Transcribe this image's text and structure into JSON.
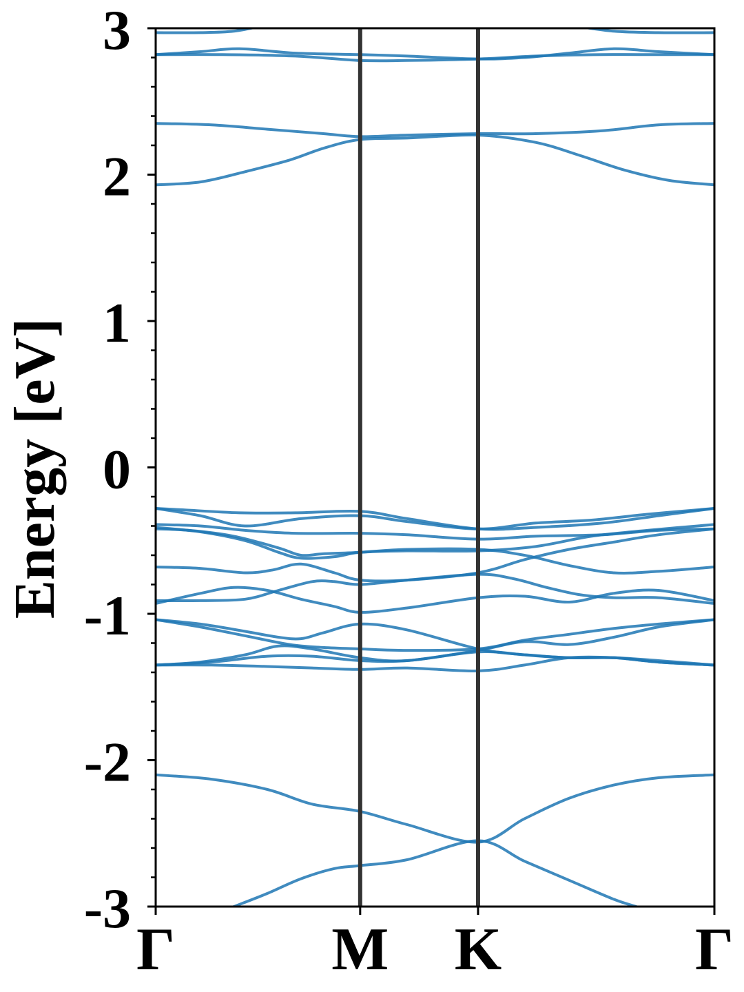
{
  "chart_data": {
    "type": "line",
    "title": "",
    "xlabel": "",
    "ylabel": "Energy [eV]",
    "ylim": [
      -3,
      3
    ],
    "xlim": [
      0,
      1
    ],
    "y_ticks": [
      {
        "value": -3,
        "label": "-3"
      },
      {
        "value": -2,
        "label": "-2"
      },
      {
        "value": -1,
        "label": "-1"
      },
      {
        "value": 0,
        "label": "0"
      },
      {
        "value": 1,
        "label": "1"
      },
      {
        "value": 2,
        "label": "2"
      },
      {
        "value": 3,
        "label": "3"
      }
    ],
    "y_minor_step": 0.2,
    "k_points": [
      {
        "label": "Γ",
        "x": 0.0
      },
      {
        "label": "M",
        "x": 0.366
      },
      {
        "label": "K",
        "x": 0.577
      },
      {
        "label": "Γ",
        "x": 1.0
      }
    ],
    "grid": false,
    "legend": "none",
    "colors": {
      "band": "#1f77b4",
      "kline": "#333333",
      "axis": "#000000"
    },
    "series": [
      {
        "x": [
          0.0,
          0.08,
          0.14,
          0.2,
          0.28,
          0.366,
          0.45,
          0.577,
          0.66,
          0.74,
          0.82,
          0.9,
          1.0
        ],
        "values": [
          2.97,
          2.97,
          2.98,
          3.02,
          3.05,
          3.06,
          3.06,
          3.06,
          3.05,
          3.02,
          2.98,
          2.97,
          2.97
        ]
      },
      {
        "x": [
          0.0,
          0.08,
          0.15,
          0.25,
          0.366,
          0.45,
          0.577,
          0.66,
          0.74,
          0.82,
          0.9,
          1.0
        ],
        "values": [
          2.82,
          2.84,
          2.86,
          2.83,
          2.82,
          2.81,
          2.79,
          2.8,
          2.83,
          2.86,
          2.84,
          2.82
        ]
      },
      {
        "x": [
          0.0,
          0.12,
          0.25,
          0.366,
          0.45,
          0.577,
          0.68,
          0.8,
          0.9,
          1.0
        ],
        "values": [
          2.82,
          2.82,
          2.81,
          2.78,
          2.78,
          2.79,
          2.81,
          2.82,
          2.82,
          2.82
        ]
      },
      {
        "x": [
          0.0,
          0.1,
          0.2,
          0.3,
          0.366,
          0.45,
          0.577,
          0.68,
          0.8,
          0.9,
          1.0
        ],
        "values": [
          2.35,
          2.34,
          2.31,
          2.28,
          2.26,
          2.27,
          2.28,
          2.28,
          2.3,
          2.34,
          2.35
        ]
      },
      {
        "x": [
          0.0,
          0.08,
          0.16,
          0.24,
          0.3,
          0.366,
          0.45,
          0.577,
          0.68,
          0.76,
          0.84,
          0.92,
          1.0
        ],
        "values": [
          1.93,
          1.95,
          2.02,
          2.1,
          2.18,
          2.24,
          2.25,
          2.27,
          2.22,
          2.13,
          2.03,
          1.96,
          1.93
        ]
      },
      {
        "x": [
          0.0,
          0.05,
          0.15,
          0.25,
          0.366,
          0.45,
          0.577,
          0.68,
          0.8,
          0.9,
          1.0
        ],
        "values": [
          -0.28,
          -0.29,
          -0.31,
          -0.31,
          -0.3,
          -0.35,
          -0.42,
          -0.41,
          -0.38,
          -0.33,
          -0.28
        ]
      },
      {
        "x": [
          0.0,
          0.08,
          0.16,
          0.26,
          0.366,
          0.45,
          0.577,
          0.68,
          0.78,
          0.88,
          1.0
        ],
        "values": [
          -0.28,
          -0.33,
          -0.4,
          -0.35,
          -0.33,
          -0.37,
          -0.42,
          -0.38,
          -0.36,
          -0.32,
          -0.28
        ]
      },
      {
        "x": [
          0.0,
          0.08,
          0.16,
          0.25,
          0.366,
          0.45,
          0.577,
          0.68,
          0.8,
          0.9,
          1.0
        ],
        "values": [
          -0.39,
          -0.4,
          -0.43,
          -0.45,
          -0.45,
          -0.46,
          -0.49,
          -0.47,
          -0.46,
          -0.43,
          -0.42
        ]
      },
      {
        "x": [
          0.0,
          0.08,
          0.16,
          0.22,
          0.26,
          0.32,
          0.366,
          0.45,
          0.577,
          0.68,
          0.78,
          0.88,
          1.0
        ],
        "values": [
          -0.41,
          -0.44,
          -0.5,
          -0.58,
          -0.62,
          -0.61,
          -0.58,
          -0.57,
          -0.57,
          -0.54,
          -0.47,
          -0.43,
          -0.39
        ]
      },
      {
        "x": [
          0.0,
          0.06,
          0.14,
          0.22,
          0.26,
          0.3,
          0.366,
          0.45,
          0.577,
          0.66,
          0.74,
          0.82,
          0.9,
          1.0
        ],
        "values": [
          -0.42,
          -0.43,
          -0.47,
          -0.55,
          -0.6,
          -0.59,
          -0.58,
          -0.56,
          -0.56,
          -0.6,
          -0.67,
          -0.72,
          -0.71,
          -0.68
        ]
      },
      {
        "x": [
          0.0,
          0.08,
          0.16,
          0.21,
          0.26,
          0.32,
          0.366,
          0.45,
          0.577,
          0.66,
          0.74,
          0.82,
          0.9,
          1.0
        ],
        "values": [
          -0.68,
          -0.69,
          -0.72,
          -0.7,
          -0.66,
          -0.72,
          -0.77,
          -0.77,
          -0.72,
          -0.63,
          -0.56,
          -0.51,
          -0.46,
          -0.42
        ]
      },
      {
        "x": [
          0.0,
          0.08,
          0.14,
          0.2,
          0.26,
          0.32,
          0.366,
          0.45,
          0.577,
          0.66,
          0.74,
          0.82,
          0.9,
          1.0
        ],
        "values": [
          -0.93,
          -0.86,
          -0.82,
          -0.84,
          -0.9,
          -0.95,
          -0.99,
          -0.96,
          -0.89,
          -0.88,
          -0.92,
          -0.86,
          -0.84,
          -0.91
        ]
      },
      {
        "x": [
          0.0,
          0.08,
          0.16,
          0.22,
          0.28,
          0.32,
          0.366,
          0.45,
          0.577,
          0.64,
          0.7,
          0.76,
          0.82,
          0.9,
          1.0
        ],
        "values": [
          -0.91,
          -0.91,
          -0.9,
          -0.84,
          -0.78,
          -0.78,
          -0.8,
          -0.77,
          -0.73,
          -0.76,
          -0.82,
          -0.87,
          -0.89,
          -0.89,
          -0.93
        ]
      },
      {
        "x": [
          0.0,
          0.08,
          0.16,
          0.22,
          0.26,
          0.3,
          0.366,
          0.45,
          0.577,
          0.66,
          0.74,
          0.82,
          0.9,
          1.0
        ],
        "values": [
          -1.04,
          -1.07,
          -1.12,
          -1.16,
          -1.17,
          -1.13,
          -1.07,
          -1.11,
          -1.24,
          -1.28,
          -1.3,
          -1.3,
          -1.32,
          -1.35
        ]
      },
      {
        "x": [
          0.0,
          0.08,
          0.16,
          0.24,
          0.3,
          0.366,
          0.45,
          0.577,
          0.66,
          0.74,
          0.82,
          0.9,
          1.0
        ],
        "values": [
          -1.04,
          -1.09,
          -1.15,
          -1.21,
          -1.23,
          -1.24,
          -1.25,
          -1.24,
          -1.18,
          -1.14,
          -1.1,
          -1.07,
          -1.04
        ]
      },
      {
        "x": [
          0.0,
          0.08,
          0.16,
          0.22,
          0.28,
          0.366,
          0.45,
          0.577,
          0.66,
          0.74,
          0.82,
          0.9,
          1.0
        ],
        "values": [
          -1.35,
          -1.33,
          -1.28,
          -1.22,
          -1.24,
          -1.3,
          -1.32,
          -1.25,
          -1.19,
          -1.21,
          -1.16,
          -1.09,
          -1.04
        ]
      },
      {
        "x": [
          0.0,
          0.1,
          0.2,
          0.28,
          0.366,
          0.45,
          0.577,
          0.66,
          0.74,
          0.82,
          0.9,
          1.0
        ],
        "values": [
          -1.35,
          -1.33,
          -1.29,
          -1.29,
          -1.32,
          -1.32,
          -1.26,
          -1.28,
          -1.3,
          -1.3,
          -1.33,
          -1.35
        ]
      },
      {
        "x": [
          0.0,
          0.1,
          0.2,
          0.28,
          0.366,
          0.45,
          0.577,
          0.66,
          0.74,
          0.82,
          0.9,
          1.0
        ],
        "values": [
          -1.35,
          -1.35,
          -1.36,
          -1.37,
          -1.38,
          -1.37,
          -1.39,
          -1.35,
          -1.3,
          -1.3,
          -1.33,
          -1.35
        ]
      },
      {
        "x": [
          0.0,
          0.1,
          0.2,
          0.28,
          0.366,
          0.45,
          0.577,
          0.66,
          0.74,
          0.82,
          0.9,
          1.0
        ],
        "values": [
          -2.1,
          -2.13,
          -2.2,
          -2.3,
          -2.35,
          -2.44,
          -2.56,
          -2.4,
          -2.26,
          -2.17,
          -2.12,
          -2.1
        ]
      },
      {
        "x": [
          0.14,
          0.2,
          0.26,
          0.32,
          0.366,
          0.45,
          0.577,
          0.66,
          0.74,
          0.82,
          0.86
        ],
        "values": [
          -3.0,
          -2.91,
          -2.81,
          -2.74,
          -2.72,
          -2.68,
          -2.55,
          -2.69,
          -2.82,
          -2.95,
          -3.0
        ]
      }
    ]
  }
}
